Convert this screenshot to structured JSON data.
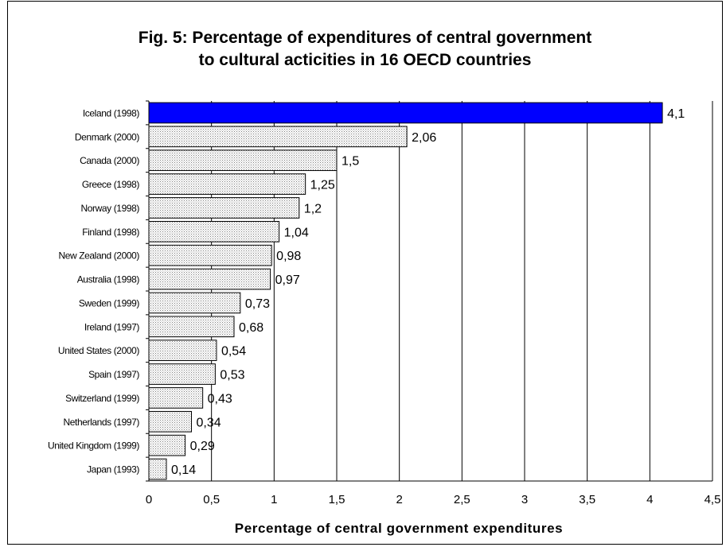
{
  "chart_data": {
    "type": "bar",
    "orientation": "horizontal",
    "title_line1": "Fig. 5: Percentage of expenditures of central government",
    "title_line2": "to cultural acticities in 16 OECD countries",
    "xlabel": "Percentage of central government expenditures",
    "ylabel": "",
    "xlim": [
      0,
      4.5
    ],
    "xticks": [
      "0",
      "0,5",
      "1",
      "1,5",
      "2",
      "2,5",
      "3",
      "3,5",
      "4",
      "4,5"
    ],
    "grid": "vertical",
    "categories": [
      "Iceland (1998)",
      "Denmark (2000)",
      "Canada (2000)",
      "Greece (1998)",
      "Norway (1998)",
      "Finland (1998)",
      "New Zealand (2000)",
      "Australia (1998)",
      "Sweden (1999)",
      "Ireland (1997)",
      "United States (2000)",
      "Spain (1997)",
      "Switzerland (1999)",
      "Netherlands (1997)",
      "United Kingdom (1999)",
      "Japan (1993)"
    ],
    "values": [
      4.1,
      2.06,
      1.5,
      1.25,
      1.2,
      1.04,
      0.98,
      0.97,
      0.73,
      0.68,
      0.54,
      0.53,
      0.43,
      0.34,
      0.29,
      0.14
    ],
    "value_labels": [
      "4,1",
      "2,06",
      "1,5",
      "1,25",
      "1,2",
      "1,04",
      "0,98",
      "0,97",
      "0,73",
      "0,68",
      "0,54",
      "0,53",
      "0,43",
      "0,34",
      "0,29",
      "0,14"
    ],
    "colors": {
      "highlight": "#0000ff",
      "bar": "#d9d9d9",
      "grid": "#000000"
    }
  }
}
